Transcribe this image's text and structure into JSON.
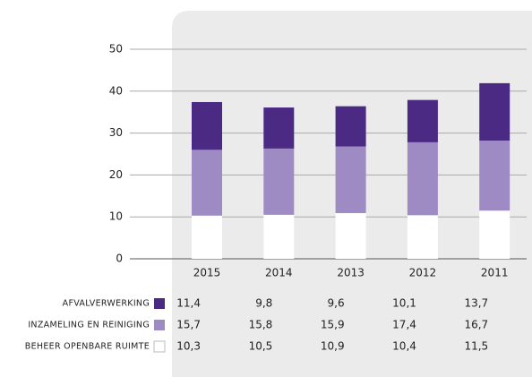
{
  "chart_data": {
    "type": "stacked_bar",
    "categories": [
      "2015",
      "2014",
      "2013",
      "2012",
      "2011"
    ],
    "series": [
      {
        "name": "AFVALVERWERKING",
        "color": "#4b2a84",
        "values": [
          11.4,
          9.8,
          9.6,
          10.1,
          13.7
        ],
        "value_labels": [
          "11,4",
          "9,8",
          "9,6",
          "10,1",
          "13,7"
        ]
      },
      {
        "name": "INZAMELING EN REINIGING",
        "color": "#9f8bc4",
        "values": [
          15.7,
          15.8,
          15.9,
          17.4,
          16.7
        ],
        "value_labels": [
          "15,7",
          "15,8",
          "15,9",
          "17,4",
          "16,7"
        ]
      },
      {
        "name": "BEHEER OPENBARE RUIMTE",
        "color": "#ffffff",
        "values": [
          10.3,
          10.5,
          10.9,
          10.4,
          11.5
        ],
        "value_labels": [
          "10,3",
          "10,5",
          "10,9",
          "10,4",
          "11,5"
        ]
      }
    ],
    "ylim": [
      0,
      50
    ],
    "yticks": [
      0,
      10,
      20,
      30,
      40,
      50
    ],
    "grid": true
  }
}
